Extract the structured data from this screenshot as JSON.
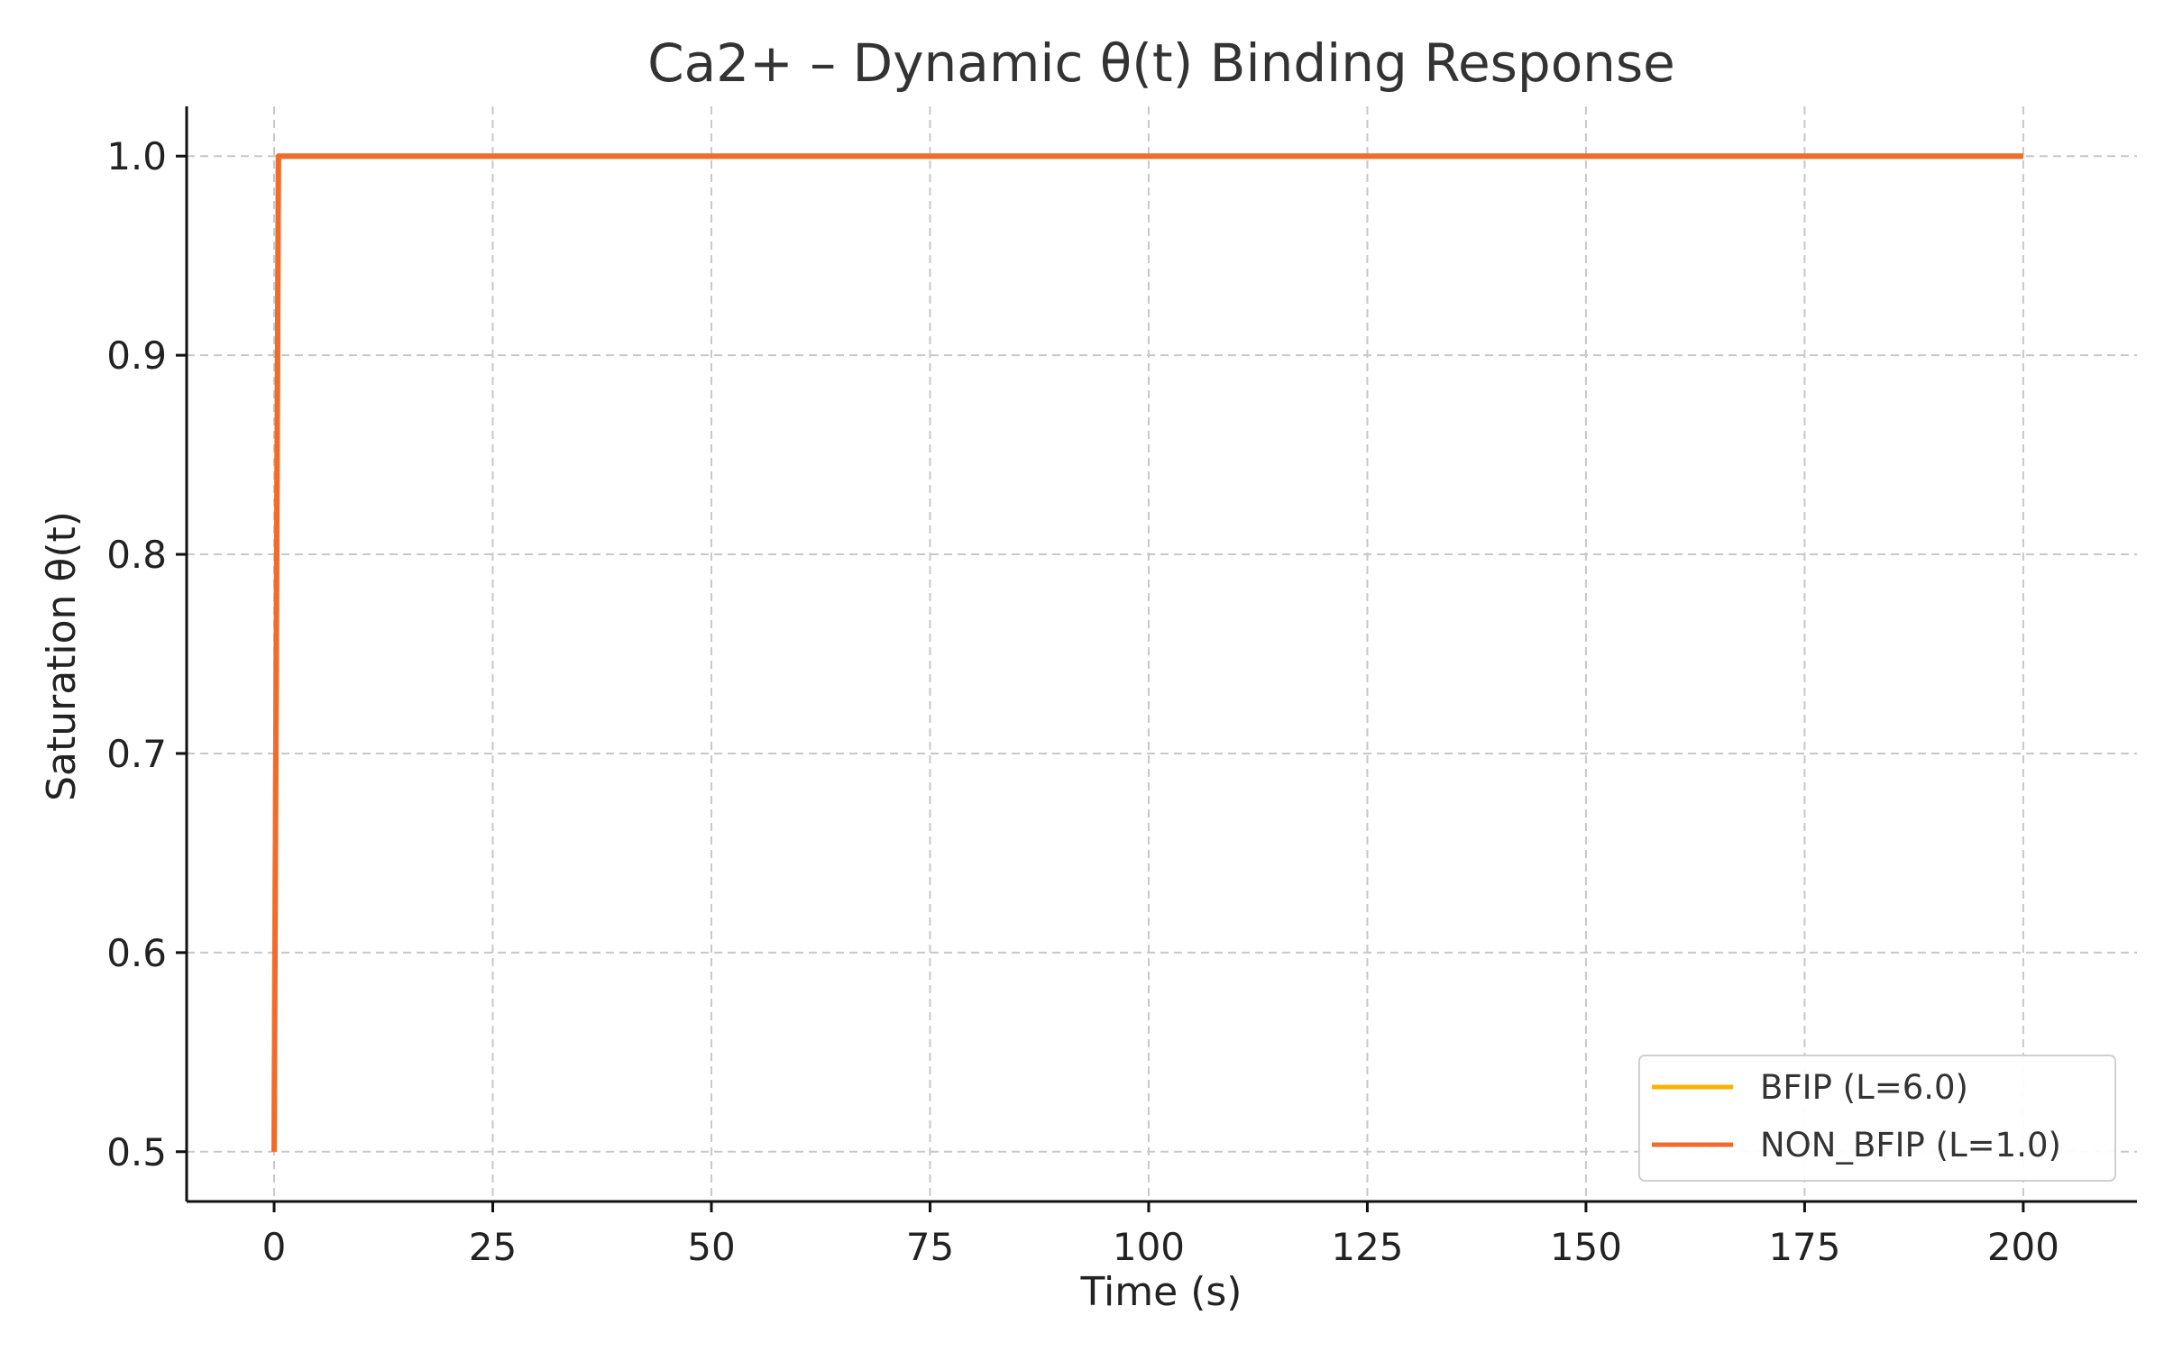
{
  "chart_data": {
    "type": "line",
    "title": "Ca2+ – Dynamic θ(t) Binding Response",
    "xlabel": "Time (s)",
    "ylabel": "Saturation θ(t)",
    "xlim": [
      -10,
      213
    ],
    "ylim": [
      0.475,
      1.025
    ],
    "xticks": [
      0,
      25,
      50,
      75,
      100,
      125,
      150,
      175,
      200
    ],
    "xtick_labels": [
      "0",
      "25",
      "50",
      "75",
      "100",
      "125",
      "150",
      "175",
      "200"
    ],
    "yticks": [
      0.5,
      0.6,
      0.7,
      0.8,
      0.9,
      1.0
    ],
    "ytick_labels": [
      "0.5",
      "0.6",
      "0.7",
      "0.8",
      "0.9",
      "1.0"
    ],
    "grid": true,
    "legend_position": "bottom-right",
    "series": [
      {
        "name": "BFIP (L=6.0)",
        "color": "#ffb000",
        "x": [
          0,
          0.5,
          200
        ],
        "y": [
          0.5,
          1.0,
          1.0
        ]
      },
      {
        "name": "NON_BFIP (L=1.0)",
        "color": "#ef6c2e",
        "x": [
          0,
          0.5,
          200
        ],
        "y": [
          0.5,
          1.0,
          1.0
        ]
      }
    ]
  }
}
